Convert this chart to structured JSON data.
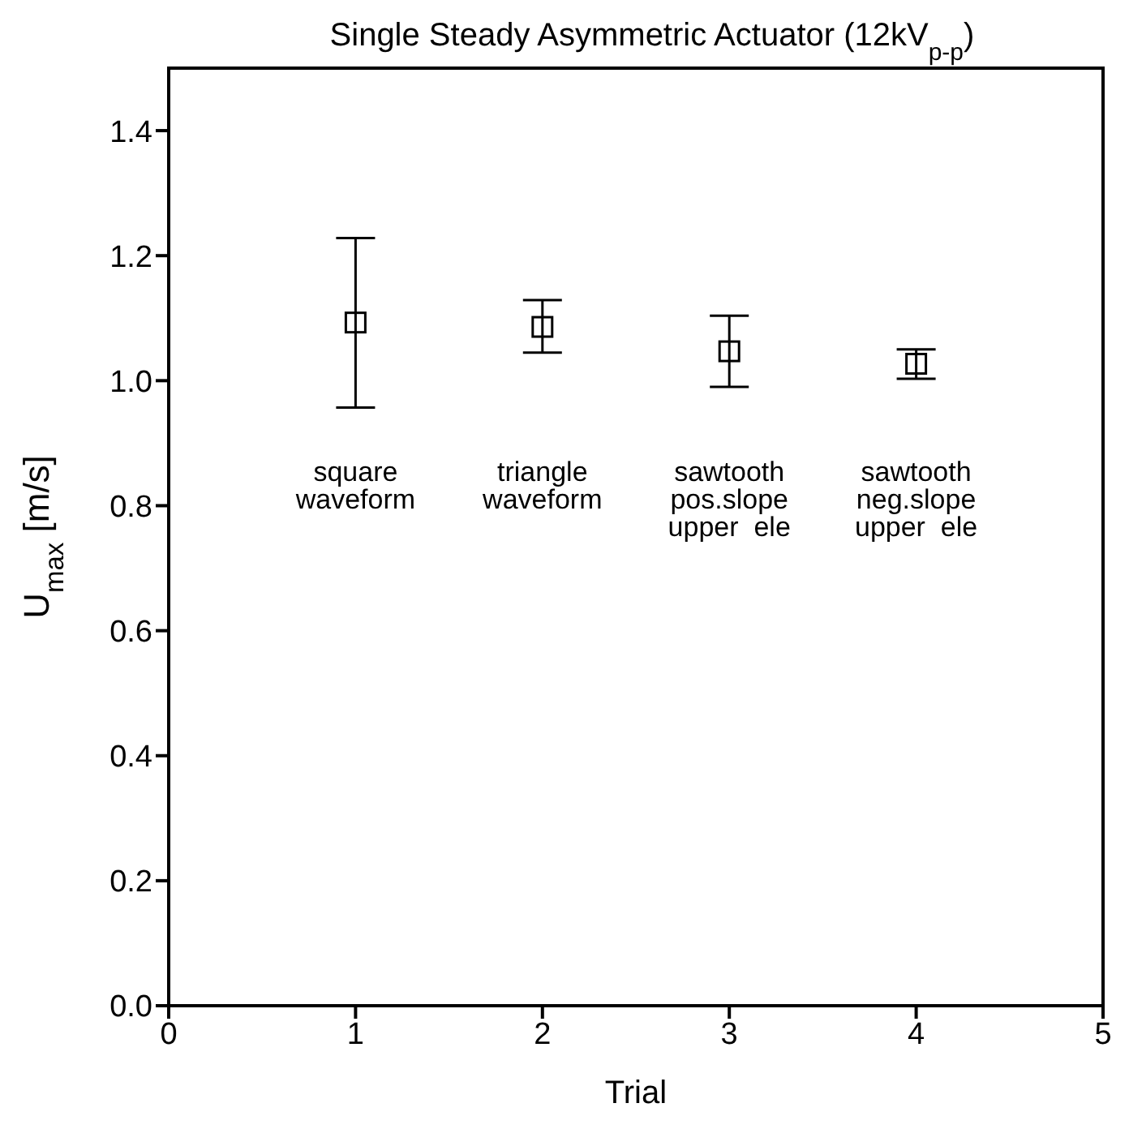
{
  "chart_data": {
    "type": "scatter",
    "title": "Single Steady Asymmetric Actuator (12kV$_{p-p}$)",
    "xlabel": "Trial",
    "ylabel": "U$_{max}$ [m/s]",
    "x": [
      1,
      2,
      3,
      4
    ],
    "series": [
      {
        "color": "#000000",
        "values": [
          1.093,
          1.086,
          1.047,
          1.027
        ],
        "errors": [
          [
            0.957,
            1.228
          ],
          [
            1.045,
            1.129
          ],
          [
            0.99,
            1.104
          ],
          [
            1.003,
            1.05
          ]
        ]
      }
    ],
    "marker": "square",
    "xlim": [
      0,
      5
    ],
    "xticks": [
      0,
      1,
      2,
      3,
      4,
      5
    ],
    "ylim": [
      0,
      1.5
    ],
    "yticks": [
      {
        "value": 0,
        "label": "0.0"
      },
      0.2,
      0.4,
      0.6,
      0.8,
      {
        "value": 1,
        "label": "1.0"
      },
      1.2,
      1.4
    ],
    "grid": false,
    "legend": false,
    "annotations": [
      "square\nwaveform",
      "triangle\nwaveform",
      "sawtooth\npos.slope\nupper  ele",
      "sawtooth\nneg.slope\nupper  ele"
    ]
  }
}
